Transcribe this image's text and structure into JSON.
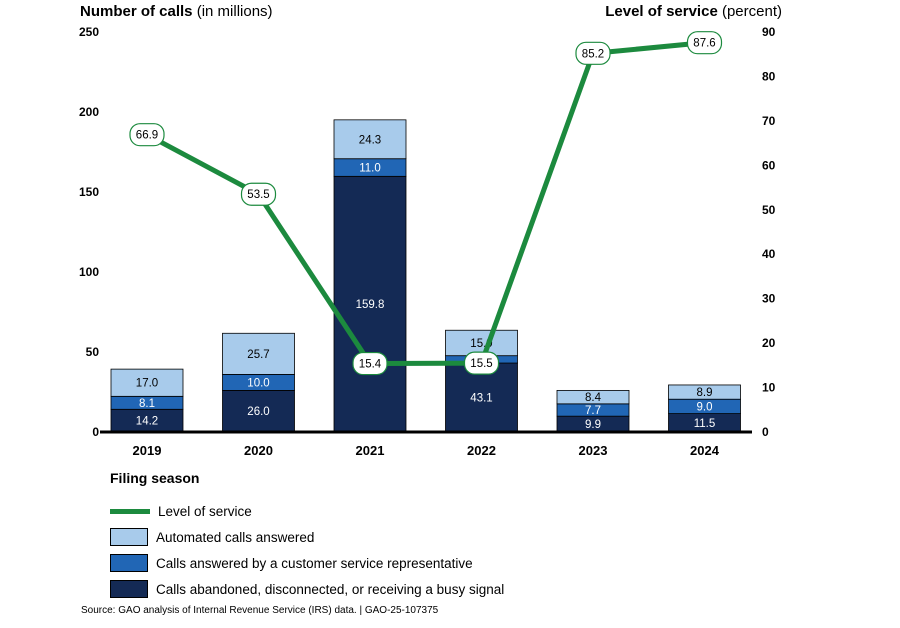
{
  "chart_data": {
    "type": "bar",
    "stacked": true,
    "left_axis_title_bold": "Number of calls",
    "left_axis_title_rest": "(in millions)",
    "right_axis_title_bold": "Level of service",
    "right_axis_title_rest": "(percent)",
    "xlabel": "Filing season",
    "categories": [
      "2019",
      "2020",
      "2021",
      "2022",
      "2023",
      "2024"
    ],
    "left_ylim": [
      0,
      250
    ],
    "left_ticks": [
      "0",
      "50",
      "100",
      "150",
      "200",
      "250"
    ],
    "right_ylim": [
      0,
      90
    ],
    "right_ticks": [
      "0",
      "10",
      "20",
      "30",
      "40",
      "50",
      "60",
      "70",
      "80",
      "90"
    ],
    "series": [
      {
        "name": "Calls abandoned, disconnected, or receiving a busy signal",
        "color": "#142a55",
        "values": [
          14.2,
          26.0,
          159.8,
          43.1,
          9.9,
          11.5
        ],
        "labels": [
          "14.2",
          "26.0",
          "159.8",
          "43.1",
          "9.9",
          "11.5"
        ]
      },
      {
        "name": "Calls answered by a customer service representative",
        "color": "#2166b5",
        "values": [
          8.1,
          10.0,
          11.0,
          4.6,
          7.7,
          9.0
        ],
        "labels": [
          "8.1",
          "10.0",
          "11.0",
          "4.6",
          "7.7",
          "9.0"
        ]
      },
      {
        "name": "Automated calls answered",
        "color": "#a8cbeb",
        "values": [
          17.0,
          25.7,
          24.3,
          15.9,
          8.4,
          8.9
        ],
        "labels": [
          "17.0",
          "25.7",
          "24.3",
          "15.9",
          "8.4",
          "8.9"
        ]
      }
    ],
    "line": {
      "name": "Level of service",
      "color": "#1c8a3e",
      "values": [
        66.9,
        53.5,
        15.4,
        15.5,
        85.2,
        87.6
      ],
      "labels": [
        "66.9",
        "53.5",
        "15.4",
        "15.5",
        "85.2",
        "87.6"
      ]
    },
    "grid": false
  },
  "legend": {
    "title": "Filing season",
    "items": [
      {
        "label": "Level of service",
        "kind": "line",
        "color": "#1c8a3e"
      },
      {
        "label": "Automated calls answered",
        "kind": "box",
        "color": "#a8cbeb"
      },
      {
        "label": "Calls answered by a customer service representative",
        "kind": "box",
        "color": "#2166b5"
      },
      {
        "label": "Calls abandoned, disconnected, or receiving a busy signal",
        "kind": "box",
        "color": "#142a55"
      }
    ]
  },
  "source": "Source: GAO analysis of Internal Revenue Service (IRS) data.  |  GAO-25-107375"
}
